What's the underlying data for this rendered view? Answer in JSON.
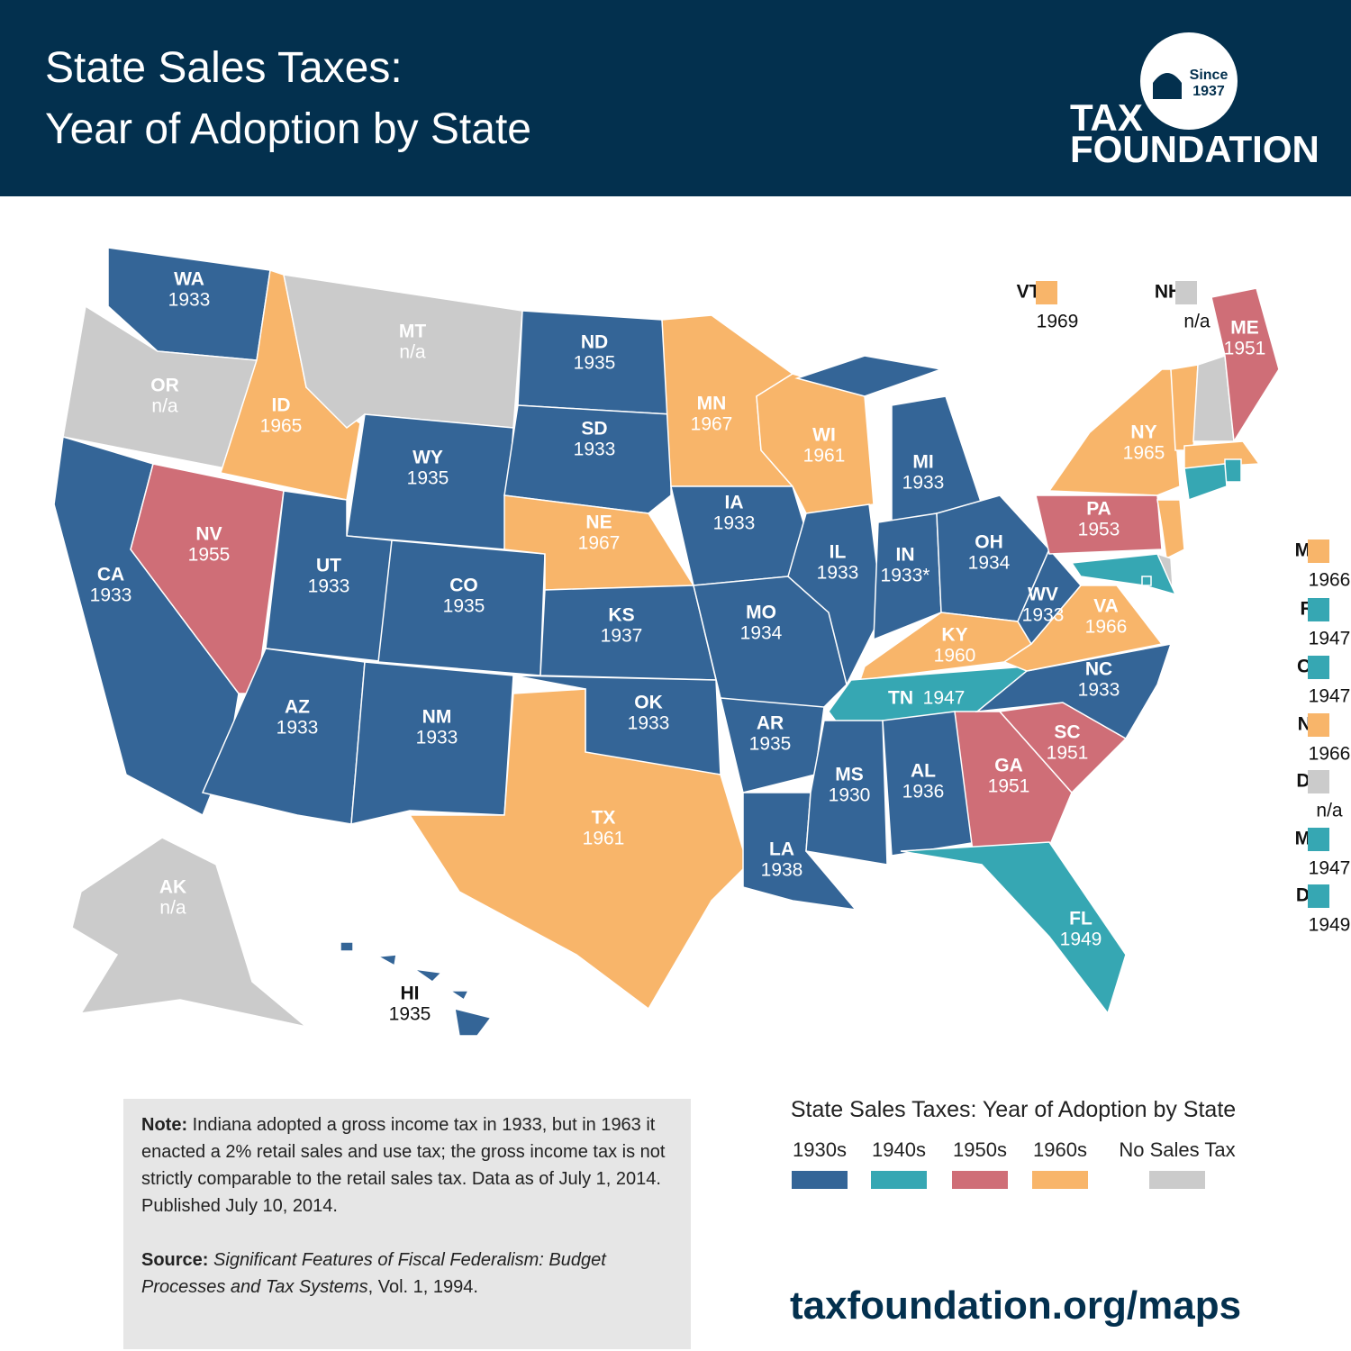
{
  "header": {
    "title_line1": "State Sales Taxes:",
    "title_line2": "Year of Adoption by State"
  },
  "logo": {
    "since": "Since",
    "year": "1937",
    "name_line1": "TAX",
    "name_line2": "FOUNDATION"
  },
  "states": [
    {
      "abbr": "WA",
      "year": "1933",
      "color": "#346597"
    },
    {
      "abbr": "OR",
      "year": "n/a",
      "color": "#cbcbcb"
    },
    {
      "abbr": "CA",
      "year": "1933",
      "color": "#346597"
    },
    {
      "abbr": "NV",
      "year": "1955",
      "color": "#cf6e77"
    },
    {
      "abbr": "ID",
      "year": "1965",
      "color": "#f8b56a"
    },
    {
      "abbr": "MT",
      "year": "n/a",
      "color": "#cbcbcb"
    },
    {
      "abbr": "WY",
      "year": "1935",
      "color": "#346597"
    },
    {
      "abbr": "UT",
      "year": "1933",
      "color": "#346597"
    },
    {
      "abbr": "CO",
      "year": "1935",
      "color": "#346597"
    },
    {
      "abbr": "AZ",
      "year": "1933",
      "color": "#346597"
    },
    {
      "abbr": "NM",
      "year": "1933",
      "color": "#346597"
    },
    {
      "abbr": "ND",
      "year": "1935",
      "color": "#346597"
    },
    {
      "abbr": "SD",
      "year": "1933",
      "color": "#346597"
    },
    {
      "abbr": "NE",
      "year": "1967",
      "color": "#f8b56a"
    },
    {
      "abbr": "KS",
      "year": "1937",
      "color": "#346597"
    },
    {
      "abbr": "OK",
      "year": "1933",
      "color": "#346597"
    },
    {
      "abbr": "TX",
      "year": "1961",
      "color": "#f8b56a"
    },
    {
      "abbr": "MN",
      "year": "1967",
      "color": "#f8b56a"
    },
    {
      "abbr": "IA",
      "year": "1933",
      "color": "#346597"
    },
    {
      "abbr": "MO",
      "year": "1934",
      "color": "#346597"
    },
    {
      "abbr": "AR",
      "year": "1935",
      "color": "#346597"
    },
    {
      "abbr": "LA",
      "year": "1938",
      "color": "#346597"
    },
    {
      "abbr": "WI",
      "year": "1961",
      "color": "#f8b56a"
    },
    {
      "abbr": "IL",
      "year": "1933",
      "color": "#346597"
    },
    {
      "abbr": "MI",
      "year": "1933",
      "color": "#346597"
    },
    {
      "abbr": "IN",
      "year": "1933*",
      "color": "#346597"
    },
    {
      "abbr": "OH",
      "year": "1934",
      "color": "#346597"
    },
    {
      "abbr": "KY",
      "year": "1960",
      "color": "#f8b56a"
    },
    {
      "abbr": "TN",
      "year": "1947",
      "color": "#36a7b3"
    },
    {
      "abbr": "MS",
      "year": "1930",
      "color": "#346597"
    },
    {
      "abbr": "AL",
      "year": "1936",
      "color": "#346597"
    },
    {
      "abbr": "GA",
      "year": "1951",
      "color": "#cf6e77"
    },
    {
      "abbr": "FL",
      "year": "1949",
      "color": "#36a7b3"
    },
    {
      "abbr": "SC",
      "year": "1951",
      "color": "#cf6e77"
    },
    {
      "abbr": "NC",
      "year": "1933",
      "color": "#346597"
    },
    {
      "abbr": "VA",
      "year": "1966",
      "color": "#f8b56a"
    },
    {
      "abbr": "WV",
      "year": "1933",
      "color": "#346597"
    },
    {
      "abbr": "PA",
      "year": "1953",
      "color": "#cf6e77"
    },
    {
      "abbr": "NY",
      "year": "1965",
      "color": "#f8b56a"
    },
    {
      "abbr": "VT",
      "year": "1969",
      "color": "#f8b56a"
    },
    {
      "abbr": "NH",
      "year": "n/a",
      "color": "#cbcbcb"
    },
    {
      "abbr": "ME",
      "year": "1951",
      "color": "#cf6e77"
    },
    {
      "abbr": "MA",
      "year": "1966",
      "color": "#f8b56a"
    },
    {
      "abbr": "RI",
      "year": "1947",
      "color": "#36a7b3"
    },
    {
      "abbr": "CT",
      "year": "1947",
      "color": "#36a7b3"
    },
    {
      "abbr": "NJ",
      "year": "1966",
      "color": "#f8b56a"
    },
    {
      "abbr": "DE",
      "year": "n/a",
      "color": "#cbcbcb"
    },
    {
      "abbr": "MD",
      "year": "1947",
      "color": "#36a7b3"
    },
    {
      "abbr": "DC",
      "year": "1949",
      "color": "#36a7b3"
    },
    {
      "abbr": "AK",
      "year": "n/a",
      "color": "#cbcbcb"
    },
    {
      "abbr": "HI",
      "year": "1935",
      "color": "#346597"
    }
  ],
  "note": {
    "label": "Note:",
    "text": "Indiana adopted a gross income tax in 1933, but in 1963 it enacted a 2% retail sales and use tax; the gross income tax is not strictly comparable to the retail sales tax. Data as of July 1, 2014. Published July 10, 2014."
  },
  "source": {
    "label": "Source:",
    "title": "Significant Features of Fiscal Federalism: Budget Processes and Tax Systems",
    "rest": ", Vol. 1, 1994."
  },
  "legend": {
    "title": "State Sales Taxes: Year of Adoption by State",
    "items": [
      {
        "label": "1930s",
        "color": "#346597"
      },
      {
        "label": "1940s",
        "color": "#36a7b3"
      },
      {
        "label": "1950s",
        "color": "#cf6e77"
      },
      {
        "label": "1960s",
        "color": "#f8b56a"
      },
      {
        "label": "No Sales Tax",
        "color": "#cbcbcb"
      }
    ]
  },
  "url": "taxfoundation.org/maps"
}
